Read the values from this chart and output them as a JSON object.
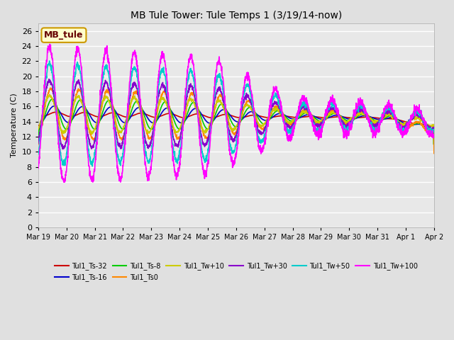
{
  "title": "MB Tule Tower: Tule Temps 1 (3/19/14-now)",
  "ylabel": "Temperature (C)",
  "ylim": [
    0,
    27
  ],
  "yticks": [
    0,
    2,
    4,
    6,
    8,
    10,
    12,
    14,
    16,
    18,
    20,
    22,
    24,
    26
  ],
  "bg_color": "#e0e0e0",
  "plot_bg_color": "#e8e8e8",
  "grid_color": "#ffffff",
  "series": {
    "Tul1_Ts-32": {
      "color": "#cc0000",
      "lw": 1.2
    },
    "Tul1_Ts-16": {
      "color": "#0000cc",
      "lw": 1.2
    },
    "Tul1_Ts-8": {
      "color": "#00cc00",
      "lw": 1.2
    },
    "Tul1_Ts0": {
      "color": "#ff8800",
      "lw": 1.2
    },
    "Tul1_Tw+10": {
      "color": "#cccc00",
      "lw": 1.2
    },
    "Tul1_Tw+30": {
      "color": "#8800cc",
      "lw": 1.2
    },
    "Tul1_Tw+50": {
      "color": "#00cccc",
      "lw": 1.2
    },
    "Tul1_Tw+100": {
      "color": "#ff00ff",
      "lw": 1.2
    }
  },
  "xtick_labels": [
    "Mar 19",
    "Mar 20",
    "Mar 21",
    "Mar 22",
    "Mar 23",
    "Mar 24",
    "Mar 25",
    "Mar 26",
    "Mar 27",
    "Mar 28",
    "Mar 29",
    "Mar 30",
    "Mar 31",
    "Apr 1",
    "Apr 2"
  ],
  "legend_box_color": "#ffffcc",
  "legend_box_edge": "#cc9900",
  "legend_text_color": "#660000",
  "legend_label": "MB_tule",
  "figsize": [
    6.4,
    4.8
  ],
  "dpi": 100
}
